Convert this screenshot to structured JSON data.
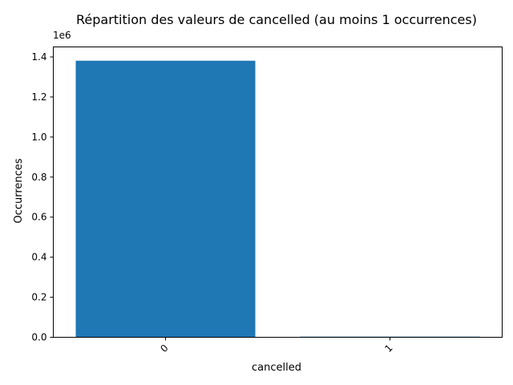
{
  "chart_data": {
    "type": "bar",
    "title": "Répartition des valeurs de cancelled (au moins 1 occurrences)",
    "xlabel": "cancelled",
    "ylabel": "Occurrences",
    "y_offset_label": "1e6",
    "categories": [
      "0",
      "1"
    ],
    "values": [
      1381000,
      3200
    ],
    "ylim": [
      0,
      1450000
    ],
    "yticks": [
      0,
      200000,
      400000,
      600000,
      800000,
      1000000,
      1200000,
      1400000
    ],
    "ytick_labels": [
      "0.0",
      "0.2",
      "0.4",
      "0.6",
      "0.8",
      "1.0",
      "1.2",
      "1.4"
    ],
    "bar_color": "#1f77b4",
    "grid": false,
    "legend": "none"
  }
}
